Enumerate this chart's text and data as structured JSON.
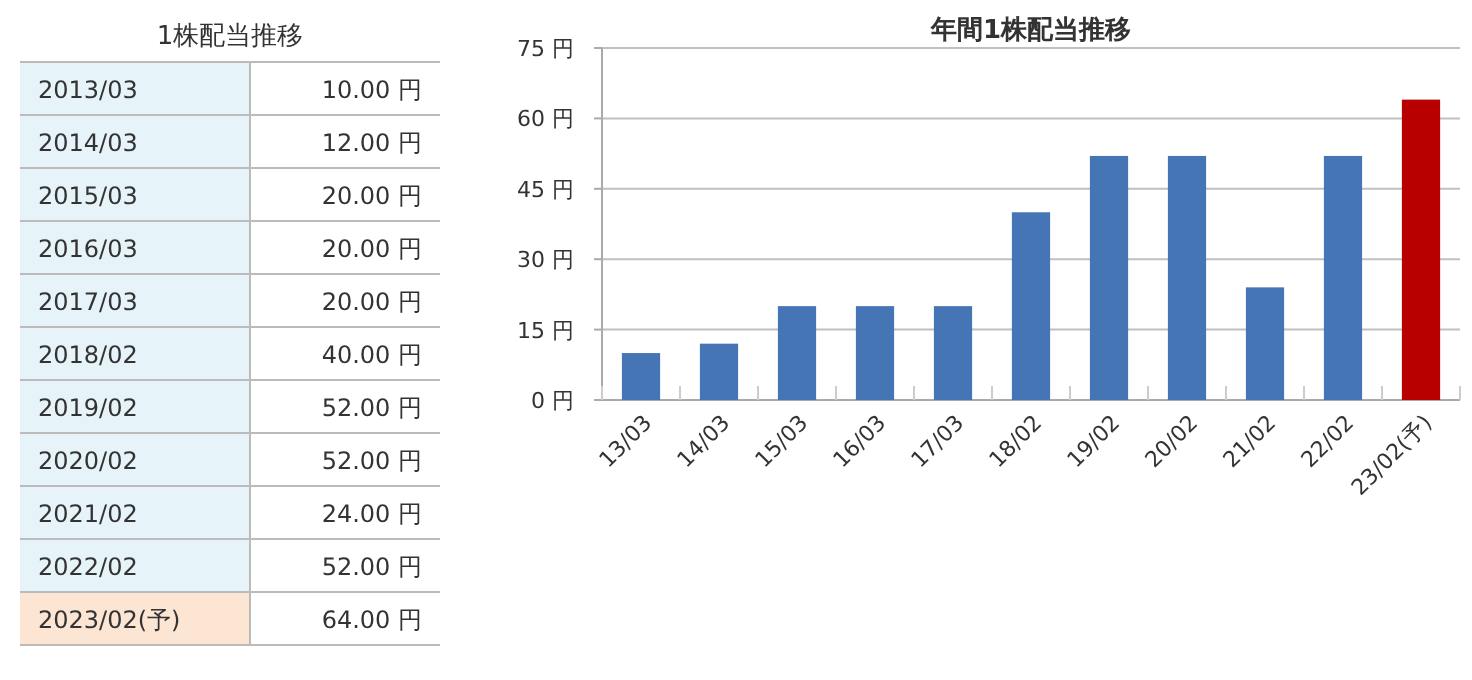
{
  "chart_data": [
    {
      "type": "other",
      "title": "1株配当推移",
      "categories": [
        "2013/03",
        "2014/03",
        "2015/03",
        "2016/03",
        "2017/03",
        "2018/02",
        "2019/02",
        "2020/02",
        "2021/02",
        "2022/02",
        "2023/02(予)"
      ],
      "value_labels": [
        "10.00 円",
        "12.00 円",
        "20.00 円",
        "20.00 円",
        "20.00 円",
        "40.00 円",
        "52.00 円",
        "52.00 円",
        "24.00 円",
        "52.00 円",
        "64.00 円"
      ],
      "colors": [
        "#e6f3f8",
        "#e6f3f8",
        "#e6f3f8",
        "#e6f3f8",
        "#e6f3f8",
        "#e6f3f8",
        "#e6f3f8",
        "#e6f3f8",
        "#e6f3f8",
        "#e6f3f8",
        "#fde5d3"
      ]
    },
    {
      "type": "bar",
      "title": "年間1株配当推移",
      "categories": [
        "13/03",
        "14/03",
        "15/03",
        "16/03",
        "17/03",
        "18/02",
        "19/02",
        "20/02",
        "21/02",
        "22/02",
        "23/02(予)"
      ],
      "values": [
        10,
        12,
        20,
        20,
        20,
        40,
        52,
        52,
        24,
        52,
        64
      ],
      "colors": [
        "#4675b6",
        "#4675b6",
        "#4675b6",
        "#4675b6",
        "#4675b6",
        "#4675b6",
        "#4675b6",
        "#4675b6",
        "#4675b6",
        "#4675b6",
        "#b90000"
      ],
      "ylim": [
        0,
        75
      ],
      "yticks": [
        {
          "value": 0,
          "label": "0 円"
        },
        {
          "value": 15,
          "label": "15 円"
        },
        {
          "value": 30,
          "label": "30 円"
        },
        {
          "value": 45,
          "label": "45 円"
        },
        {
          "value": 60,
          "label": "60 円"
        },
        {
          "value": 75,
          "label": "75 円"
        }
      ],
      "grid": "y"
    }
  ]
}
